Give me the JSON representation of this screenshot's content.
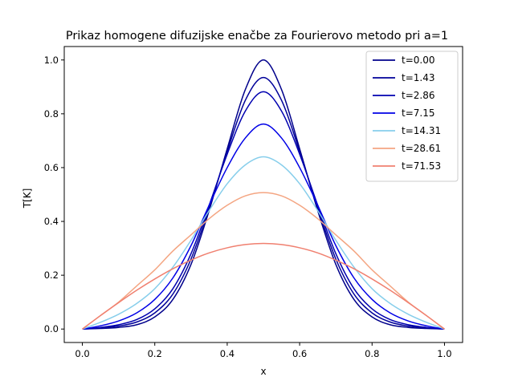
{
  "chart_data": {
    "type": "line",
    "title": "Prikaz homogene difuzijske enačbe za Fourierovo metodo pri a=1",
    "xlabel": "x",
    "ylabel": "T[K]",
    "xlim": [
      -0.05,
      1.05
    ],
    "ylim": [
      -0.05,
      1.05
    ],
    "xticks": [
      0.0,
      0.2,
      0.4,
      0.6,
      0.8,
      1.0
    ],
    "xtick_labels": [
      "0.0",
      "0.2",
      "0.4",
      "0.6",
      "0.8",
      "1.0"
    ],
    "yticks": [
      0.0,
      0.2,
      0.4,
      0.6,
      0.8,
      1.0
    ],
    "ytick_labels": [
      "0.0",
      "0.2",
      "0.4",
      "0.6",
      "0.8",
      "1.0"
    ],
    "grid": false,
    "legend_position": "top-right",
    "x": [
      0.0,
      0.05,
      0.1,
      0.15,
      0.2,
      0.25,
      0.3,
      0.35,
      0.4,
      0.45,
      0.5,
      0.55,
      0.6,
      0.65,
      0.7,
      0.75,
      0.8,
      0.85,
      0.9,
      0.95,
      1.0
    ],
    "series": [
      {
        "name": "t=0.00",
        "color": "#00008b",
        "values": [
          0.0,
          0.002,
          0.006,
          0.016,
          0.045,
          0.11,
          0.24,
          0.44,
          0.67,
          0.89,
          1.0,
          0.89,
          0.67,
          0.44,
          0.24,
          0.11,
          0.045,
          0.016,
          0.006,
          0.002,
          0.0
        ]
      },
      {
        "name": "t=1.43",
        "color": "#000099",
        "values": [
          0.0,
          0.004,
          0.011,
          0.026,
          0.06,
          0.13,
          0.26,
          0.45,
          0.66,
          0.85,
          0.935,
          0.85,
          0.66,
          0.45,
          0.26,
          0.13,
          0.06,
          0.026,
          0.011,
          0.004,
          0.0
        ]
      },
      {
        "name": "t=2.86",
        "color": "#0000b0",
        "values": [
          0.0,
          0.006,
          0.016,
          0.035,
          0.075,
          0.15,
          0.28,
          0.46,
          0.65,
          0.81,
          0.882,
          0.81,
          0.65,
          0.46,
          0.28,
          0.15,
          0.075,
          0.035,
          0.016,
          0.006,
          0.0
        ]
      },
      {
        "name": "t=7.15",
        "color": "#0000e6",
        "values": [
          0.0,
          0.012,
          0.03,
          0.06,
          0.11,
          0.19,
          0.31,
          0.46,
          0.6,
          0.71,
          0.762,
          0.71,
          0.6,
          0.46,
          0.31,
          0.19,
          0.11,
          0.06,
          0.03,
          0.012,
          0.0
        ]
      },
      {
        "name": "t=14.31",
        "color": "#87ceeb",
        "values": [
          0.0,
          0.025,
          0.055,
          0.095,
          0.15,
          0.23,
          0.33,
          0.44,
          0.54,
          0.61,
          0.64,
          0.61,
          0.54,
          0.44,
          0.33,
          0.23,
          0.15,
          0.095,
          0.055,
          0.025,
          0.0
        ]
      },
      {
        "name": "t=28.61",
        "color": "#f4a582",
        "values": [
          0.0,
          0.05,
          0.1,
          0.16,
          0.22,
          0.29,
          0.35,
          0.41,
          0.46,
          0.495,
          0.507,
          0.495,
          0.46,
          0.41,
          0.35,
          0.29,
          0.22,
          0.16,
          0.1,
          0.05,
          0.0
        ]
      },
      {
        "name": "t=71.53",
        "color": "#f08070",
        "values": [
          0.0,
          0.05,
          0.098,
          0.144,
          0.186,
          0.224,
          0.256,
          0.283,
          0.302,
          0.314,
          0.318,
          0.314,
          0.302,
          0.283,
          0.256,
          0.224,
          0.186,
          0.144,
          0.098,
          0.05,
          0.0
        ]
      }
    ]
  }
}
